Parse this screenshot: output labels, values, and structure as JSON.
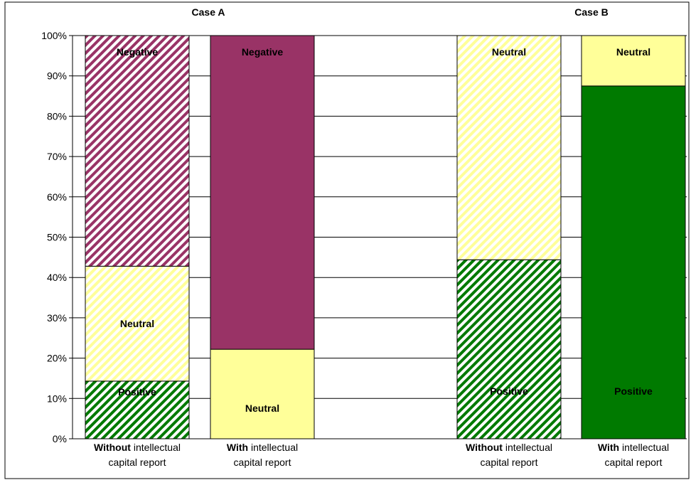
{
  "chart_data": {
    "type": "bar",
    "stacked": true,
    "ylim": [
      0,
      100
    ],
    "yticks": [
      "0%",
      "10%",
      "20%",
      "30%",
      "40%",
      "50%",
      "60%",
      "70%",
      "80%",
      "90%",
      "100%"
    ],
    "grid": true,
    "groups": [
      {
        "title": "Case A"
      },
      {
        "title": "Case B"
      }
    ],
    "bars": [
      {
        "group": 0,
        "label_bold": "Without",
        "label_rest": " intellectual",
        "label_line2": "capital report",
        "segments": [
          {
            "name": "Positive",
            "value": 14.3,
            "color": "#007a00",
            "hatched": true
          },
          {
            "name": "Neutral",
            "value": 28.5,
            "color": "#ffff99",
            "hatched": true
          },
          {
            "name": "Negative",
            "value": 57.2,
            "color": "#993366",
            "hatched": true
          }
        ]
      },
      {
        "group": 0,
        "label_bold": "With",
        "label_rest": " intellectual",
        "label_line2": "capital report",
        "segments": [
          {
            "name": "Neutral",
            "value": 22.2,
            "color": "#ffff99",
            "hatched": false
          },
          {
            "name": "Negative",
            "value": 77.8,
            "color": "#993366",
            "hatched": false
          }
        ]
      },
      {
        "group": 1,
        "label_bold": "Without",
        "label_rest": " intellectual",
        "label_line2": "capital report",
        "segments": [
          {
            "name": "Positive",
            "value": 44.4,
            "color": "#007a00",
            "hatched": true
          },
          {
            "name": "Neutral",
            "value": 55.6,
            "color": "#ffff99",
            "hatched": true
          }
        ]
      },
      {
        "group": 1,
        "label_bold": "With",
        "label_rest": " intellectual",
        "label_line2": "capital report",
        "segments": [
          {
            "name": "Positive",
            "value": 87.5,
            "color": "#007a00",
            "hatched": false
          },
          {
            "name": "Neutral",
            "value": 12.5,
            "color": "#ffff99",
            "hatched": false
          }
        ]
      }
    ]
  }
}
